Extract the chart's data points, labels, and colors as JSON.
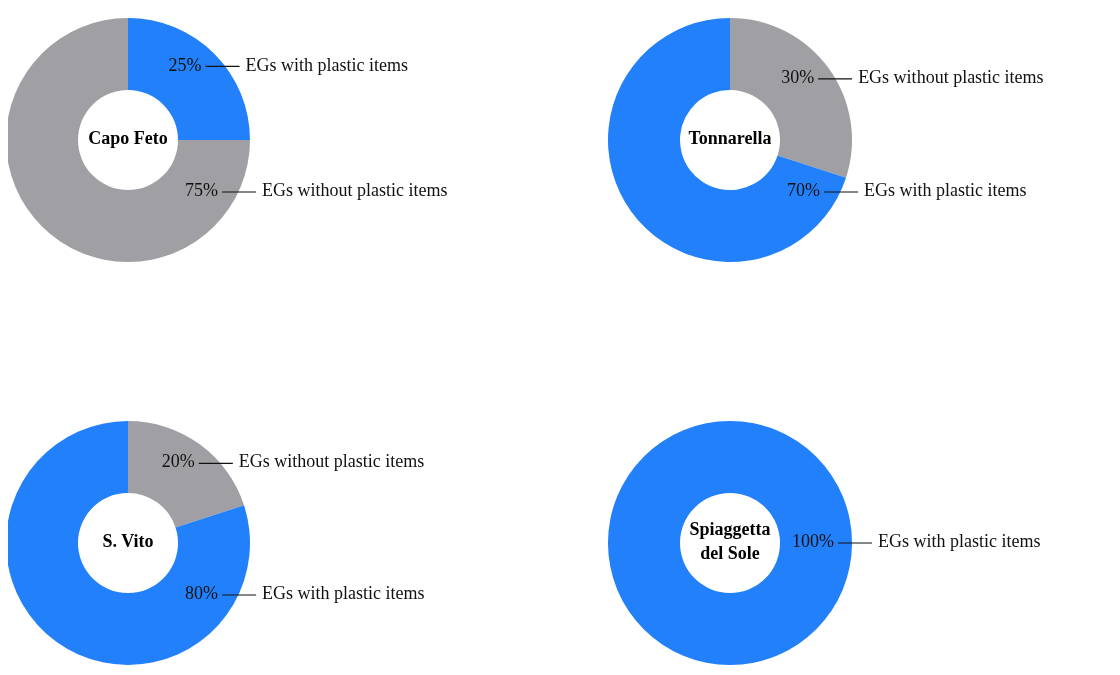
{
  "chart_data": [
    {
      "type": "donut",
      "title": "Capo Feto",
      "categories": [
        "EGs with plastic items",
        "EGs without plastic items"
      ],
      "values": [
        25,
        75
      ],
      "colors": [
        "#2380fb",
        "#a09fa3"
      ],
      "value_labels": [
        "25%",
        "75%"
      ]
    },
    {
      "type": "donut",
      "title": "Tonnarella",
      "categories": [
        "EGs without plastic items",
        "EGs with plastic items"
      ],
      "values": [
        30,
        70
      ],
      "colors": [
        "#a09fa3",
        "#2380fb"
      ],
      "value_labels": [
        "30%",
        "70%"
      ]
    },
    {
      "type": "donut",
      "title": "S. Vito",
      "categories": [
        "EGs without plastic items",
        "EGs with plastic items"
      ],
      "values": [
        20,
        80
      ],
      "colors": [
        "#a09fa3",
        "#2380fb"
      ],
      "value_labels": [
        "20%",
        "80%"
      ]
    },
    {
      "type": "donut",
      "title": "Spiaggetta del Sole",
      "categories": [
        "EGs with plastic items"
      ],
      "values": [
        100
      ],
      "colors": [
        "#2380fb"
      ],
      "value_labels": [
        "100%"
      ]
    }
  ]
}
